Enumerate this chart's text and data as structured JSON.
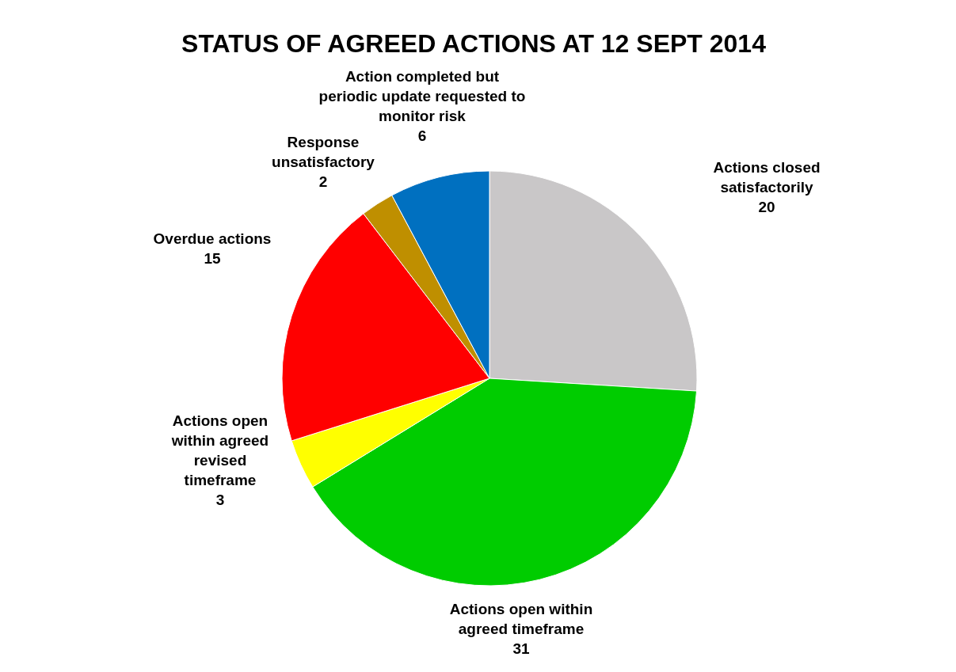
{
  "chart_data": {
    "type": "pie",
    "title": "STATUS OF AGREED ACTIONS AT 12 SEPT 2014",
    "categories": [
      "Actions closed satisfactorily",
      "Actions open within agreed timeframe",
      "Actions open within agreed revised timeframe",
      "Overdue actions",
      "Response unsatisfactory",
      "Action completed but periodic update requested to monitor risk"
    ],
    "values": [
      20,
      31,
      3,
      15,
      2,
      6
    ],
    "colors": [
      "#c9c7c8",
      "#00cc00",
      "#ffff00",
      "#ff0000",
      "#bf8f00",
      "#0070c0"
    ],
    "data_labels": true
  }
}
